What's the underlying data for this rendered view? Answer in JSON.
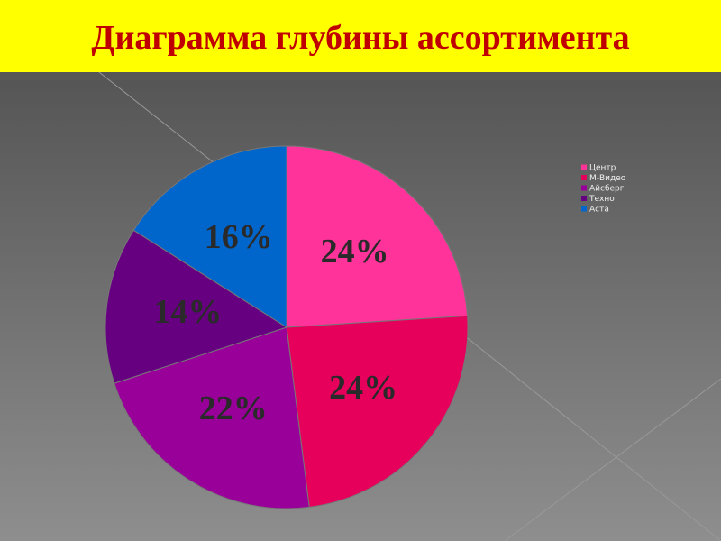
{
  "chart_data": {
    "type": "pie",
    "title": "Диаграмма глубины ассортимента",
    "categories": [
      "Центр",
      "М-Видео",
      "Айсберг",
      "Техно",
      "Аста"
    ],
    "values": [
      24,
      24,
      22,
      14,
      16
    ],
    "value_labels": [
      "24%",
      "24%",
      "22%",
      "14%",
      "16%"
    ],
    "colors": [
      "#ff3399",
      "#e6005c",
      "#990099",
      "#660080",
      "#0066cc"
    ],
    "legend": "right"
  }
}
